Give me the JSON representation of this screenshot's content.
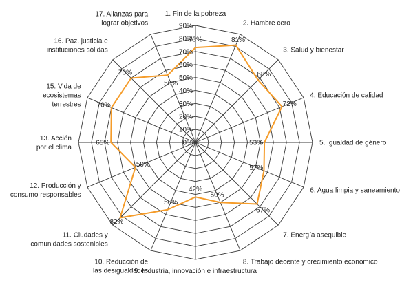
{
  "chart_data": {
    "type": "radar",
    "title": "",
    "categories": [
      "1. Fin de la pobreza",
      "2. Hambre cero",
      "3. Salud y bienestar",
      "4. Educación de calidad",
      "5. Igualdad de género",
      "6. Agua limpia y saneamiento",
      "7. Energía asequible",
      "8. Trabajo decente y crecimiento económico",
      "9. Industria, innovación e infraestructura",
      "10. Reducción de las desigualdades",
      "11. Ciudades y comunidades sostenibles",
      "12. Producción y consumo responsables",
      "13. Acción por el clima",
      "15. Vida de ecosistemas terrestres",
      "16. Paz, justicia e instituciones sólidas",
      "17. Alianzas para lograr objetivos"
    ],
    "category_lines": [
      [
        "1. Fin de la pobreza"
      ],
      [
        "2. Hambre cero"
      ],
      [
        "3. Salud y bienestar"
      ],
      [
        "4. Educación de calidad"
      ],
      [
        "5. Igualdad de género"
      ],
      [
        "6. Agua limpia y saneamiento"
      ],
      [
        "7. Energía asequible"
      ],
      [
        "8. Trabajo decente y crecimiento económico"
      ],
      [
        "9. Industria, innovación e infraestructura"
      ],
      [
        "10. Reducción de",
        "las desigualdades"
      ],
      [
        "11. Ciudades y",
        "comunidades sostenibles"
      ],
      [
        "12. Producción y",
        "consumo responsables"
      ],
      [
        "13. Acción",
        "por el clima"
      ],
      [
        "15. Vida de",
        "ecosistemas",
        "terrestres"
      ],
      [
        "16. Paz, justicia e",
        "instituciones sólidas"
      ],
      [
        "17. Alianzas para",
        "lograr objetivos"
      ]
    ],
    "series": [
      {
        "values": [
          73,
          81,
          68,
          72,
          53,
          57,
          67,
          50,
          42,
          56,
          82,
          50,
          65,
          70,
          70,
          56
        ],
        "value_labels": [
          "73%",
          "81%",
          "68%",
          "72%",
          "53%",
          "57%",
          "67%",
          "50%",
          "42%",
          "56%",
          "82%",
          "50%",
          "65%",
          "70%",
          "70%",
          "56%"
        ]
      }
    ],
    "rlim": [
      0,
      90
    ],
    "ticks": [
      0,
      10,
      20,
      30,
      40,
      50,
      60,
      70,
      80,
      90
    ],
    "tick_labels": [
      "0%",
      "10%",
      "20%",
      "30%",
      "40%",
      "50%",
      "60%",
      "70%",
      "80%",
      "90%"
    ],
    "grid": true,
    "legend": "none",
    "colors": {
      "series": "#f59c2a",
      "grid": "#3a3a3a",
      "text": "#222222"
    }
  }
}
